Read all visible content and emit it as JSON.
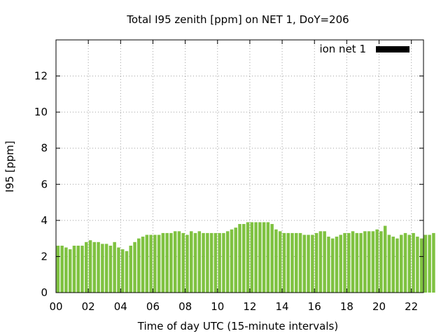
{
  "chart_data": {
    "type": "bar",
    "title": "Total I95 zenith [ppm] on NET 1, DoY=206",
    "xlabel": "Time of day UTC (15-minute intervals)",
    "ylabel": "I95 [ppm]",
    "ylim": [
      0,
      14
    ],
    "xlim": [
      0,
      22.75
    ],
    "x_tick_labels": [
      "00",
      "02",
      "04",
      "06",
      "08",
      "10",
      "12",
      "14",
      "16",
      "18",
      "20",
      "22"
    ],
    "y_tick_labels": [
      "0",
      "2",
      "4",
      "6",
      "8",
      "10",
      "12"
    ],
    "grid": true,
    "legend_position": "top-right",
    "legend_swatch_color": "#000000",
    "series": [
      {
        "name": "ion net 1",
        "color": "#7fc241",
        "values": [
          2.6,
          2.6,
          2.5,
          2.4,
          2.6,
          2.6,
          2.6,
          2.8,
          2.9,
          2.8,
          2.8,
          2.7,
          2.7,
          2.6,
          2.8,
          2.5,
          2.4,
          2.3,
          2.6,
          2.8,
          3.0,
          3.1,
          3.2,
          3.2,
          3.2,
          3.2,
          3.3,
          3.3,
          3.3,
          3.4,
          3.4,
          3.3,
          3.2,
          3.4,
          3.3,
          3.4,
          3.3,
          3.3,
          3.3,
          3.3,
          3.3,
          3.3,
          3.4,
          3.5,
          3.6,
          3.8,
          3.8,
          3.9,
          3.9,
          3.9,
          3.9,
          3.9,
          3.9,
          3.8,
          3.5,
          3.4,
          3.3,
          3.3,
          3.3,
          3.3,
          3.3,
          3.2,
          3.2,
          3.2,
          3.3,
          3.4,
          3.4,
          3.1,
          3.0,
          3.1,
          3.2,
          3.3,
          3.3,
          3.4,
          3.3,
          3.3,
          3.4,
          3.4,
          3.4,
          3.5,
          3.4,
          3.7,
          3.2,
          3.1,
          3.0,
          3.2,
          3.3,
          3.2,
          3.3,
          3.1,
          3.0,
          3.2,
          3.2,
          3.3
        ]
      }
    ]
  }
}
